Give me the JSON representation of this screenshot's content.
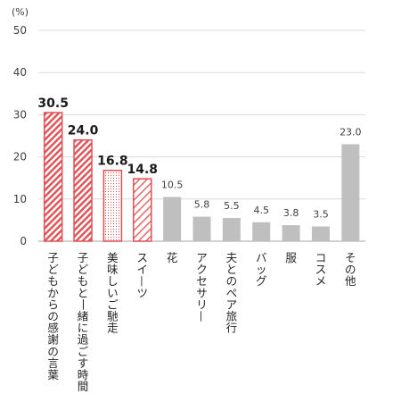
{
  "chart_data": {
    "type": "bar",
    "title": "",
    "unit": "(%)",
    "xlabel": "",
    "ylabel": "",
    "ylim": [
      0,
      50
    ],
    "yticks": [
      0,
      10,
      20,
      30,
      40,
      50
    ],
    "grid": true,
    "legend": "none",
    "categories": [
      "子どもからの感謝の言葉",
      "子どもと一緒に過ごす時間",
      "美味しいご馳走",
      "スイーツ",
      "花",
      "アクセサリー",
      "夫とのペア旅行",
      "バッグ",
      "服",
      "コスメ",
      "その他"
    ],
    "values": [
      30.5,
      24.0,
      16.8,
      14.8,
      10.5,
      5.8,
      5.5,
      4.5,
      3.8,
      3.5,
      23.0
    ],
    "value_labels": [
      "30.5",
      "24.0",
      "16.8",
      "14.8",
      "10.5",
      "5.8",
      "5.5",
      "4.5",
      "3.8",
      "3.5",
      "23.0"
    ],
    "styles": [
      "stripe",
      "stripe",
      "dots",
      "stripe-light",
      "gray",
      "gray",
      "gray",
      "gray",
      "gray",
      "gray",
      "gray"
    ],
    "colors": {
      "highlight_stroke": "#e05055",
      "highlight_fill": "#e05055",
      "gray_fill": "#bfbfbf",
      "grid": "#d9d9d9",
      "axis": "#a6a6a6"
    }
  }
}
